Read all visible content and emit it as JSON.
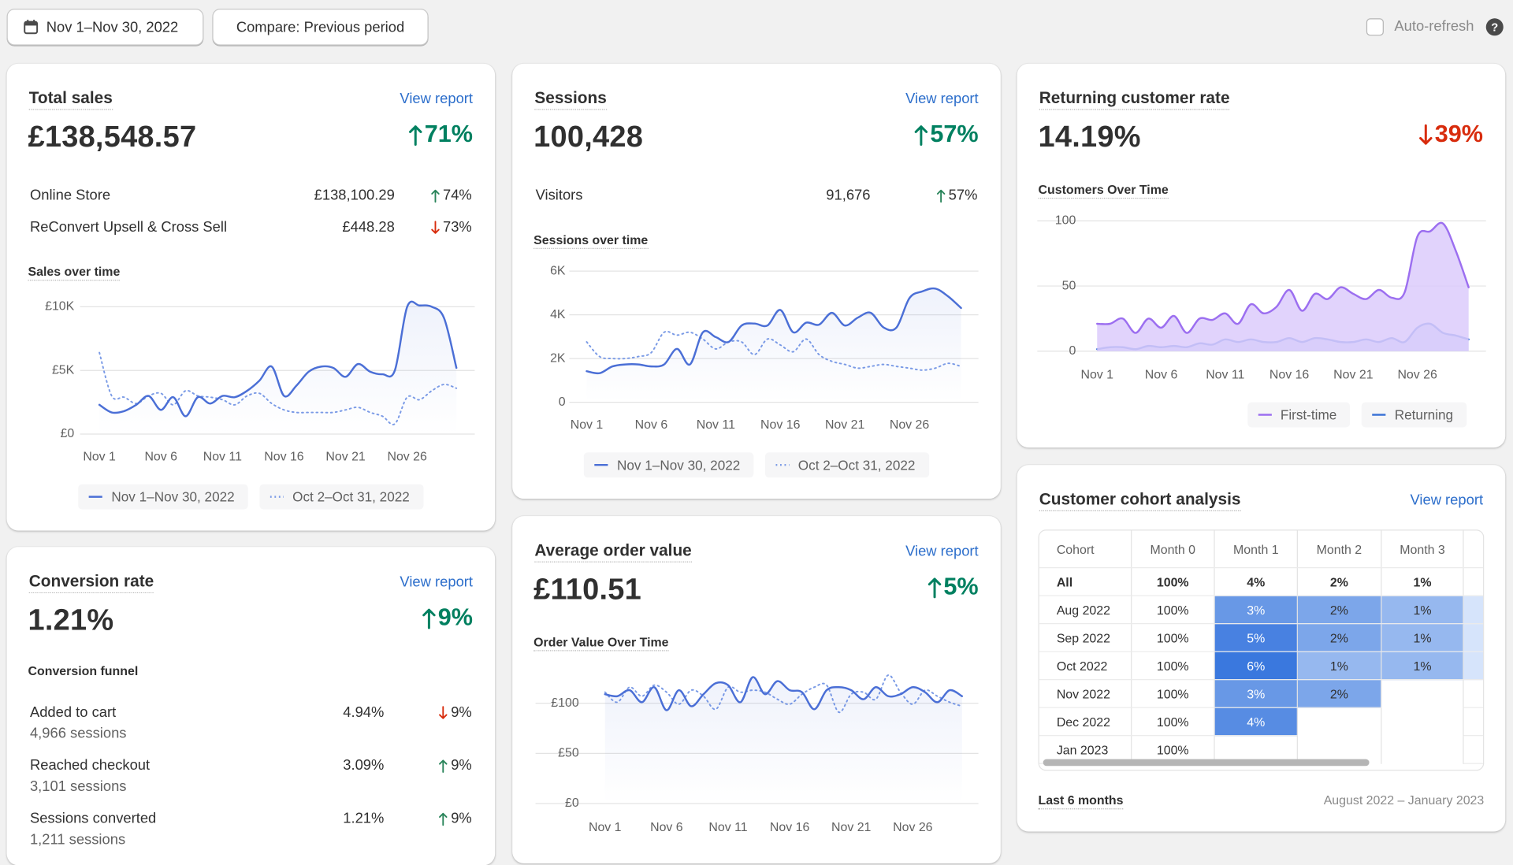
{
  "toolbar": {
    "date_range": "Nov 1–Nov 30, 2022",
    "compare": "Compare: Previous period",
    "auto_refresh": "Auto-refresh"
  },
  "total_sales": {
    "title": "Total sales",
    "link": "View report",
    "value": "£138,548.57",
    "change": "71%",
    "dir": "up",
    "breakdown": [
      {
        "label": "Online Store",
        "value": "£138,100.29",
        "change": "74%",
        "dir": "up"
      },
      {
        "label": "ReConvert Upsell & Cross Sell",
        "value": "£448.28",
        "change": "73%",
        "dir": "down"
      }
    ],
    "chart": {
      "type": "line",
      "title": "Sales over time",
      "x": [
        1,
        2,
        3,
        4,
        5,
        6,
        7,
        8,
        9,
        10,
        11,
        12,
        13,
        14,
        15,
        16,
        17,
        18,
        19,
        20,
        21,
        22,
        23,
        24,
        25,
        26,
        27,
        28,
        29,
        30
      ],
      "xticks": [
        {
          "value": 1,
          "label": "Nov 1"
        },
        {
          "value": 6,
          "label": "Nov 6"
        },
        {
          "value": 11,
          "label": "Nov 11"
        },
        {
          "value": 16,
          "label": "Nov 16"
        },
        {
          "value": 21,
          "label": "Nov 21"
        },
        {
          "value": 26,
          "label": "Nov 26"
        }
      ],
      "ylim": [
        0,
        10000
      ],
      "yticks": [
        {
          "value": 0,
          "label": "£0"
        },
        {
          "value": 5000,
          "label": "£5K"
        },
        {
          "value": 10000,
          "label": "£10K"
        }
      ],
      "grid": true,
      "series": [
        {
          "name": "Nov 1–Nov 30, 2022",
          "color": "#4b6fd6",
          "style": "solid",
          "values": [
            2300,
            1700,
            1800,
            2300,
            3000,
            1900,
            2900,
            1400,
            2900,
            2400,
            3000,
            2900,
            3400,
            4200,
            5300,
            3000,
            3800,
            4900,
            5300,
            5200,
            4500,
            5500,
            4900,
            4700,
            5000,
            10000,
            10100,
            10000,
            9100,
            5200
          ]
        },
        {
          "name": "Oct 2–Oct 31, 2022",
          "color": "#7b9be6",
          "style": "dotted",
          "values": [
            6400,
            3000,
            2900,
            2400,
            3000,
            3200,
            2300,
            3400,
            3000,
            2900,
            2700,
            2300,
            3000,
            3200,
            2400,
            1900,
            1700,
            1700,
            1700,
            1700,
            1900,
            2100,
            1700,
            1400,
            800,
            2900,
            2700,
            3400,
            3900,
            3600
          ]
        }
      ]
    }
  },
  "sessions": {
    "title": "Sessions",
    "link": "View report",
    "value": "100,428",
    "change": "57%",
    "dir": "up",
    "breakdown": [
      {
        "label": "Visitors",
        "value": "91,676",
        "change": "57%",
        "dir": "up"
      }
    ],
    "chart": {
      "type": "line",
      "title": "Sessions over time",
      "x": [
        1,
        2,
        3,
        4,
        5,
        6,
        7,
        8,
        9,
        10,
        11,
        12,
        13,
        14,
        15,
        16,
        17,
        18,
        19,
        20,
        21,
        22,
        23,
        24,
        25,
        26,
        27,
        28,
        29,
        30
      ],
      "xticks": [
        {
          "value": 1,
          "label": "Nov 1"
        },
        {
          "value": 6,
          "label": "Nov 6"
        },
        {
          "value": 11,
          "label": "Nov 11"
        },
        {
          "value": 16,
          "label": "Nov 16"
        },
        {
          "value": 21,
          "label": "Nov 21"
        },
        {
          "value": 26,
          "label": "Nov 26"
        }
      ],
      "ylim": [
        0,
        6000
      ],
      "yticks": [
        0,
        {
          "value": 2000,
          "label": "2K"
        },
        {
          "value": 4000,
          "label": "4K"
        },
        {
          "value": 6000,
          "label": "6K"
        }
      ],
      "grid": true,
      "series": [
        {
          "name": "Nov 1–Nov 30, 2022",
          "color": "#4b6fd6",
          "style": "solid",
          "values": [
            1420,
            1330,
            1640,
            1730,
            1730,
            1640,
            1730,
            2440,
            1730,
            3200,
            2980,
            2760,
            3510,
            3600,
            3510,
            4220,
            3200,
            3640,
            3550,
            4090,
            3510,
            3870,
            4090,
            3420,
            3420,
            4760,
            5070,
            5200,
            4840,
            4310
          ]
        },
        {
          "name": "Oct 2–Oct 31, 2022",
          "color": "#7b9be6",
          "style": "dotted",
          "values": [
            2760,
            2090,
            2000,
            2000,
            2090,
            2270,
            3200,
            3070,
            3200,
            2890,
            2440,
            2760,
            2760,
            2180,
            2890,
            2620,
            2310,
            2890,
            2180,
            1870,
            1730,
            1560,
            1640,
            1730,
            1640,
            1560,
            1470,
            1560,
            1780,
            1640
          ]
        }
      ]
    }
  },
  "returning_customer_rate": {
    "title": "Returning customer rate",
    "value": "14.19%",
    "change": "39%",
    "dir": "down",
    "chart": {
      "type": "area",
      "title": "Customers Over Time",
      "x": [
        1,
        2,
        3,
        4,
        5,
        6,
        7,
        8,
        9,
        10,
        11,
        12,
        13,
        14,
        15,
        16,
        17,
        18,
        19,
        20,
        21,
        22,
        23,
        24,
        25,
        26,
        27,
        28,
        29,
        30
      ],
      "xticks": [
        {
          "value": 1,
          "label": "Nov 1"
        },
        {
          "value": 6,
          "label": "Nov 6"
        },
        {
          "value": 11,
          "label": "Nov 11"
        },
        {
          "value": 16,
          "label": "Nov 16"
        },
        {
          "value": 21,
          "label": "Nov 21"
        },
        {
          "value": 26,
          "label": "Nov 26"
        }
      ],
      "ylim": [
        0,
        100
      ],
      "yticks": [
        0,
        50,
        100
      ],
      "grid": true,
      "series": [
        {
          "name": "First-time",
          "color": "#9c6ff0",
          "fill": "#dccbfb",
          "values": [
            21,
            21,
            25,
            14,
            25,
            18,
            27,
            14,
            25,
            24,
            29,
            21,
            36,
            29,
            34,
            47,
            31,
            44,
            40,
            49,
            44,
            40,
            47,
            41,
            45,
            88,
            92,
            98,
            77,
            49
          ]
        },
        {
          "name": "Returning",
          "color": "#3b73d6",
          "fill": "#c2d5f6",
          "values": [
            1.5,
            3,
            3,
            1.5,
            4,
            3,
            4,
            3,
            6,
            5,
            9,
            7,
            9,
            7,
            7,
            10,
            7,
            10,
            9,
            7,
            7,
            9,
            7,
            10,
            7,
            18,
            21,
            14,
            12,
            9
          ]
        }
      ]
    }
  },
  "conversion_rate": {
    "title": "Conversion rate",
    "link": "View report",
    "value": "1.21%",
    "change": "9%",
    "dir": "up",
    "funnel_title": "Conversion funnel",
    "funnel": [
      {
        "label": "Added to cart",
        "sessions": "4,966 sessions",
        "value": "4.94%",
        "change": "9%",
        "dir": "down"
      },
      {
        "label": "Reached checkout",
        "sessions": "3,101 sessions",
        "value": "3.09%",
        "change": "9%",
        "dir": "up"
      },
      {
        "label": "Sessions converted",
        "sessions": "1,211 sessions",
        "value": "1.21%",
        "change": "9%",
        "dir": "up"
      }
    ]
  },
  "average_order_value": {
    "title": "Average order value",
    "link": "View report",
    "value": "£110.51",
    "change": "5%",
    "dir": "up",
    "chart": {
      "type": "line",
      "title": "Order Value Over Time",
      "x": [
        1,
        2,
        3,
        4,
        5,
        6,
        7,
        8,
        9,
        10,
        11,
        12,
        13,
        14,
        15,
        16,
        17,
        18,
        19,
        20,
        21,
        22,
        23,
        24,
        25,
        26,
        27,
        28,
        29,
        30
      ],
      "xticks": [
        {
          "value": 1,
          "label": "Nov 1"
        },
        {
          "value": 6,
          "label": "Nov 6"
        },
        {
          "value": 11,
          "label": "Nov 11"
        },
        {
          "value": 16,
          "label": "Nov 16"
        },
        {
          "value": 21,
          "label": "Nov 21"
        },
        {
          "value": 26,
          "label": "Nov 26"
        }
      ],
      "ylim": [
        0,
        100
      ],
      "yticks": [
        {
          "value": 0,
          "label": "£0"
        },
        {
          "value": 50,
          "label": "£50"
        },
        {
          "value": 100,
          "label": "£100"
        }
      ],
      "grid": true,
      "series": [
        {
          "color": "#4b6fd6",
          "style": "solid",
          "values": [
            109,
            107,
            113,
            101,
            116,
            93,
            113,
            97,
            109,
            120,
            118,
            101,
            126,
            109,
            122,
            113,
            111,
            94,
            113,
            116,
            113,
            104,
            116,
            107,
            109,
            116,
            111,
            101,
            113,
            107
          ]
        },
        {
          "color": "#7b9be6",
          "style": "dotted",
          "values": [
            111,
            101,
            116,
            107,
            118,
            111,
            99,
            113,
            107,
            94,
            116,
            111,
            113,
            111,
            104,
            99,
            109,
            116,
            118,
            91,
            109,
            111,
            104,
            128,
            111,
            99,
            113,
            107,
            101,
            97
          ]
        }
      ]
    }
  },
  "cohort": {
    "title": "Customer cohort analysis",
    "link": "View report",
    "columns": [
      "Cohort",
      "Month 0",
      "Month 1",
      "Month 2",
      "Month 3"
    ],
    "rows": [
      [
        "All",
        "100%",
        "4%",
        "2%",
        "1%"
      ],
      [
        "Aug 2022",
        "100%",
        "3%",
        "2%",
        "1%"
      ],
      [
        "Sep 2022",
        "100%",
        "5%",
        "2%",
        "1%"
      ],
      [
        "Oct 2022",
        "100%",
        "6%",
        "1%",
        "1%"
      ],
      [
        "Nov 2022",
        "100%",
        "3%",
        "2%"
      ],
      [
        "Dec 2022",
        "100%",
        "4%"
      ],
      [
        "Jan 2023",
        "100%"
      ]
    ],
    "footer_left": "Last 6 months",
    "footer_right": "August 2022 – January 2023"
  }
}
